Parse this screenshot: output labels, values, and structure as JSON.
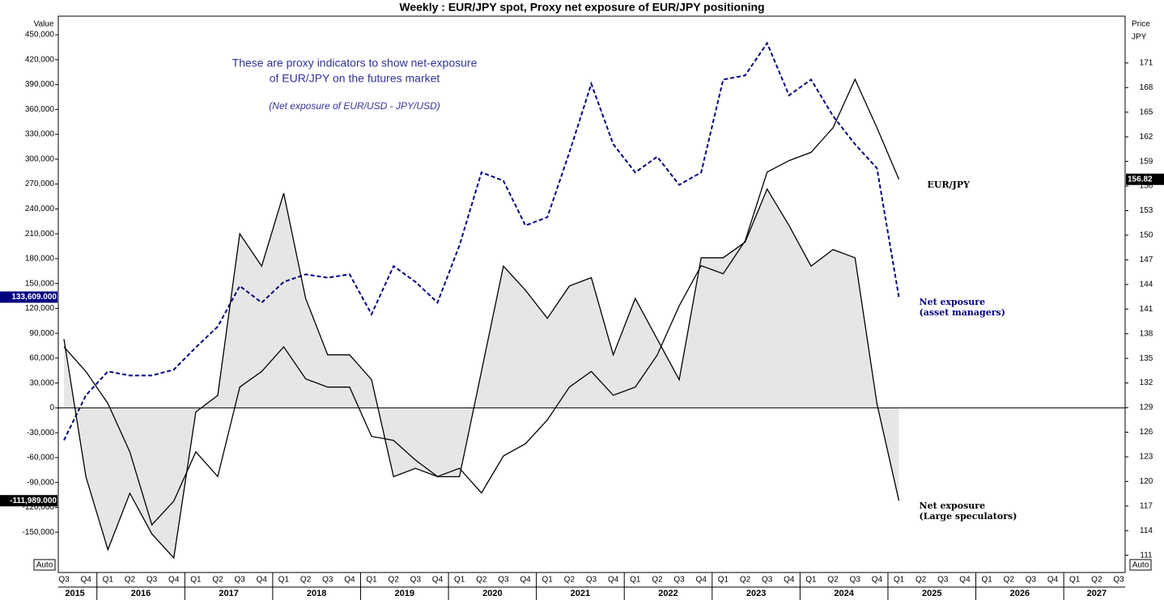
{
  "chart_data": {
    "type": "line",
    "title": "Weekly : EUR/JPY spot, Proxy net exposure of EUR/JPY positioning",
    "y_label": "Value",
    "y2_label": "Price",
    "y2_unit": "JPY",
    "annotations": [
      "These are proxy indicators to show net-exposure",
      "of EUR/JPY on the futures market",
      "(Net exposure of EUR/USD - JPY/USD)"
    ],
    "scale_mode": "Auto",
    "categories": [
      "Q3",
      "Q4",
      "Q1",
      "Q2",
      "Q3",
      "Q4",
      "Q1",
      "Q2",
      "Q3",
      "Q4",
      "Q1",
      "Q2",
      "Q3",
      "Q4",
      "Q1",
      "Q2",
      "Q3",
      "Q4",
      "Q1",
      "Q2",
      "Q3",
      "Q4",
      "Q1",
      "Q2",
      "Q3",
      "Q4",
      "Q1",
      "Q2",
      "Q3",
      "Q4",
      "Q1",
      "Q2",
      "Q3",
      "Q4",
      "Q1",
      "Q2",
      "Q3",
      "Q4",
      "Q1",
      "Q2",
      "Q3",
      "Q4",
      "Q1",
      "Q2",
      "Q3",
      "Q4",
      "Q1",
      "Q2",
      "Q3"
    ],
    "years": [
      "2015",
      "2016",
      "2017",
      "2018",
      "2019",
      "2020",
      "2021",
      "2022",
      "2023",
      "2024",
      "2025",
      "2026",
      "2027"
    ],
    "series": [
      {
        "name": "EUR/JPY",
        "color": "#000000",
        "axis": "y2",
        "last_label": "156.82",
        "values": [
          136.4,
          133.4,
          129.5,
          123.6,
          114.7,
          117.6,
          123.6,
          120.6,
          131.5,
          133.4,
          136.4,
          132.5,
          131.5,
          131.5,
          125.5,
          125.0,
          122.6,
          120.6,
          121.6,
          118.6,
          123.1,
          124.6,
          127.5,
          131.5,
          133.4,
          130.5,
          131.5,
          135.4,
          141.4,
          146.3,
          145.3,
          149.3,
          157.7,
          159.1,
          160.1,
          163.1,
          169.0,
          163.1,
          156.82,
          null,
          null,
          null,
          null,
          null,
          null,
          null,
          null,
          null,
          null
        ]
      },
      {
        "name": "Net exposure\n(asset managers)",
        "color": "#000080",
        "dashed": true,
        "last_label": "133,609.000",
        "values": [
          -39000,
          15000,
          44000,
          39000,
          39000,
          46000,
          73000,
          98000,
          147000,
          127000,
          152000,
          161000,
          157000,
          161000,
          113000,
          171000,
          152000,
          127000,
          196000,
          284000,
          274000,
          220000,
          230000,
          308000,
          391000,
          318000,
          284000,
          303000,
          269000,
          284000,
          396000,
          401000,
          440000,
          377000,
          396000,
          352000,
          318000,
          289000,
          133609,
          null,
          null,
          null,
          null,
          null,
          null,
          null,
          null,
          null,
          null
        ]
      },
      {
        "name": "Net exposure\n(Large speculators)",
        "color": "#000000",
        "fill": "#e6e6e6",
        "last_label": "-111,989.000",
        "values": [
          83000,
          -83000,
          -171000,
          -103000,
          -152000,
          -181000,
          -5000,
          15000,
          210000,
          171000,
          259000,
          132000,
          64000,
          64000,
          34000,
          -83000,
          -73000,
          -83000,
          -83000,
          44000,
          171000,
          142000,
          108000,
          147000,
          157000,
          64000,
          132000,
          83000,
          34000,
          181000,
          181000,
          200000,
          264000,
          220000,
          171000,
          191000,
          181000,
          5000,
          -111989,
          null,
          null,
          null,
          null,
          null,
          null,
          null,
          null,
          null,
          null
        ]
      }
    ],
    "ylim": [
      -198600,
      472500
    ],
    "yticks": [
      {
        "value": -150000,
        "label": "-150,000"
      },
      {
        "value": -120000,
        "label": "-120,000"
      },
      {
        "value": -90000,
        "label": "-90,000"
      },
      {
        "value": -60000,
        "label": "-60,000"
      },
      {
        "value": -30000,
        "label": "-30,000"
      },
      0,
      {
        "value": 30000,
        "label": "30,000"
      },
      {
        "value": 60000,
        "label": "60,000"
      },
      {
        "value": 90000,
        "label": "90,000"
      },
      {
        "value": 120000,
        "label": "120,000"
      },
      {
        "value": 150000,
        "label": "150,000"
      },
      {
        "value": 180000,
        "label": "180,000"
      },
      {
        "value": 210000,
        "label": "210,000"
      },
      {
        "value": 240000,
        "label": "240,000"
      },
      {
        "value": 270000,
        "label": "270,000"
      },
      {
        "value": 300000,
        "label": "300,000"
      },
      {
        "value": 330000,
        "label": "330,000"
      },
      {
        "value": 360000,
        "label": "360,000"
      },
      {
        "value": 390000,
        "label": "390,000"
      },
      {
        "value": 420000,
        "label": "420,000"
      },
      {
        "value": 450000,
        "label": "450,000"
      }
    ],
    "y2lim": [
      108.9,
      176.7
    ],
    "y2ticks": [
      111,
      114,
      117,
      120,
      123,
      126,
      129,
      132,
      135,
      138,
      141,
      144,
      147,
      150,
      153,
      156,
      159,
      162,
      165,
      168,
      171
    ],
    "zero_line": true
  }
}
